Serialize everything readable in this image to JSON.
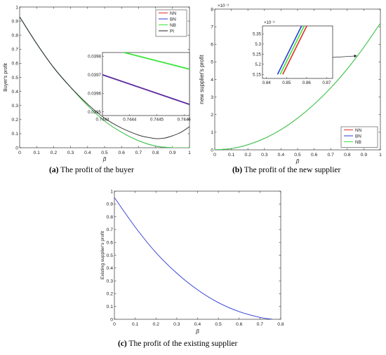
{
  "captions": {
    "a_letter": "(a)",
    "a_text": " The profit of the buyer",
    "b_letter": "(b)",
    "b_text": " The profit of the new supplier",
    "c_letter": "(c)",
    "c_text": " The profit of the existing supplier"
  },
  "colors": {
    "NN": "#e0302c",
    "BN": "#2a3bd0",
    "NB": "#39e639",
    "PI": "#222222",
    "inset_BN_line": "#5b2a9e",
    "axis": "#333333"
  },
  "chart_data": [
    {
      "id": "buyer",
      "type": "line",
      "xlabel": "β",
      "ylabel": "Buyer's profit",
      "xlim": [
        0,
        1
      ],
      "ylim": [
        0,
        1
      ],
      "xticks": [
        "0",
        "0.1",
        "0.2",
        "0.3",
        "0.4",
        "0.5",
        "0.6",
        "0.7",
        "0.8",
        "0.9",
        "1"
      ],
      "yticks": [
        "0",
        "0.1",
        "0.2",
        "0.3",
        "0.4",
        "0.5",
        "0.6",
        "0.7",
        "0.8",
        "0.9",
        "1"
      ],
      "legend": {
        "placement": "top-right",
        "entries": [
          "NN",
          "BN",
          "NB",
          "PI"
        ]
      },
      "series": [
        {
          "name": "NN",
          "x": [
            0,
            0.1,
            0.2,
            0.3,
            0.4,
            0.5,
            0.6,
            0.7,
            0.8,
            0.9,
            1
          ],
          "y": [
            0.93,
            0.74,
            0.57,
            0.43,
            0.3,
            0.19,
            0.11,
            0.05,
            0.012,
            0,
            0
          ]
        },
        {
          "name": "BN",
          "x": [
            0,
            0.1,
            0.2,
            0.3,
            0.4,
            0.5,
            0.6,
            0.7,
            0.8,
            0.9,
            1
          ],
          "y": [
            0.93,
            0.74,
            0.57,
            0.43,
            0.3,
            0.19,
            0.11,
            0.05,
            0.012,
            0,
            0
          ]
        },
        {
          "name": "NB",
          "x": [
            0,
            0.1,
            0.2,
            0.3,
            0.4,
            0.5,
            0.6,
            0.7,
            0.8,
            0.9,
            1
          ],
          "y": [
            0.93,
            0.74,
            0.57,
            0.43,
            0.3,
            0.19,
            0.11,
            0.05,
            0.013,
            0.001,
            0
          ]
        },
        {
          "name": "PI",
          "x": [
            0,
            0.1,
            0.2,
            0.3,
            0.4,
            0.5,
            0.6,
            0.7,
            0.75,
            0.8,
            0.85,
            0.9,
            0.95,
            1
          ],
          "y": [
            0.93,
            0.74,
            0.57,
            0.43,
            0.31,
            0.21,
            0.14,
            0.09,
            0.075,
            0.065,
            0.068,
            0.085,
            0.11,
            0.15
          ]
        }
      ],
      "inset": {
        "xlim": [
          0.7443,
          0.74462
        ],
        "ylim": [
          0.03948,
          0.03982
        ],
        "xticks": [
          "0.7443",
          "0.7444",
          "0.7445",
          "0.7446"
        ],
        "yticks": [
          "0.0395",
          "0.0396",
          "0.0397",
          "0.0398"
        ],
        "series": [
          {
            "name": "NB",
            "x": [
              0.7443,
              0.74462
            ],
            "y": [
              0.03985,
              0.03973
            ]
          },
          {
            "name": "BN",
            "x": [
              0.7443,
              0.74462
            ],
            "y": [
              0.0397,
              0.03954
            ]
          }
        ]
      }
    },
    {
      "id": "new_supplier",
      "type": "line",
      "xlabel": "β",
      "ylabel": "new supplier's profit",
      "exponent": "×10⁻³",
      "xlim": [
        0,
        1
      ],
      "ylim": [
        0,
        8
      ],
      "xticks": [
        "0",
        "0.1",
        "0.2",
        "0.3",
        "0.4",
        "0.5",
        "0.6",
        "0.7",
        "0.8",
        "0.9",
        "1"
      ],
      "yticks": [
        "0",
        "1",
        "2",
        "3",
        "4",
        "5",
        "6",
        "7",
        "8"
      ],
      "legend": {
        "placement": "bottom-right",
        "entries": [
          "NN",
          "BN",
          "NB"
        ]
      },
      "series": [
        {
          "name": "NN",
          "x": [
            0,
            0.1,
            0.2,
            0.3,
            0.4,
            0.5,
            0.6,
            0.7,
            0.8,
            0.9,
            1
          ],
          "y": [
            0,
            0.07,
            0.29,
            0.65,
            1.15,
            1.8,
            2.59,
            3.52,
            4.6,
            5.83,
            7.2
          ]
        },
        {
          "name": "BN",
          "x": [
            0,
            0.1,
            0.2,
            0.3,
            0.4,
            0.5,
            0.6,
            0.7,
            0.8,
            0.9,
            1
          ],
          "y": [
            0,
            0.07,
            0.29,
            0.65,
            1.15,
            1.8,
            2.59,
            3.52,
            4.6,
            5.83,
            7.2
          ]
        },
        {
          "name": "NB",
          "x": [
            0,
            0.1,
            0.2,
            0.3,
            0.4,
            0.5,
            0.6,
            0.7,
            0.8,
            0.9,
            1
          ],
          "y": [
            0,
            0.07,
            0.29,
            0.65,
            1.15,
            1.8,
            2.59,
            3.52,
            4.6,
            5.83,
            7.2
          ]
        }
      ],
      "inset": {
        "exponent": "×10⁻³",
        "xlim": [
          0.838,
          0.873
        ],
        "ylim": [
          5.13,
          5.39
        ],
        "xticks": [
          "0.84",
          "0.85",
          "0.86",
          "0.87"
        ],
        "yticks": [
          "5.15",
          "5.2",
          "5.25",
          "5.3",
          "5.35"
        ],
        "series": [
          {
            "name": "BN",
            "x": [
              0.8455,
              0.8575
            ],
            "y": [
              5.15,
              5.39
            ]
          },
          {
            "name": "NB",
            "x": [
              0.8468,
              0.8588
            ],
            "y": [
              5.15,
              5.39
            ]
          },
          {
            "name": "NN",
            "x": [
              0.8481,
              0.8601
            ],
            "y": [
              5.15,
              5.39
            ]
          }
        ]
      }
    },
    {
      "id": "existing_supplier",
      "type": "line",
      "xlabel": "β",
      "ylabel": "Existing supplier's profit",
      "xlim": [
        0,
        0.8
      ],
      "ylim": [
        0,
        1
      ],
      "xticks": [
        "0",
        "0.1",
        "0.2",
        "0.3",
        "0.4",
        "0.5",
        "0.6",
        "0.7",
        "0.8"
      ],
      "yticks": [
        "0",
        "0.1",
        "0.2",
        "0.3",
        "0.4",
        "0.5",
        "0.6",
        "0.7",
        "0.8",
        "0.9",
        "1"
      ],
      "series": [
        {
          "name": "",
          "x": [
            0,
            0.1,
            0.2,
            0.3,
            0.4,
            0.5,
            0.6,
            0.7,
            0.76
          ],
          "y": [
            0.95,
            0.72,
            0.52,
            0.36,
            0.23,
            0.13,
            0.06,
            0.015,
            0
          ]
        }
      ]
    }
  ]
}
